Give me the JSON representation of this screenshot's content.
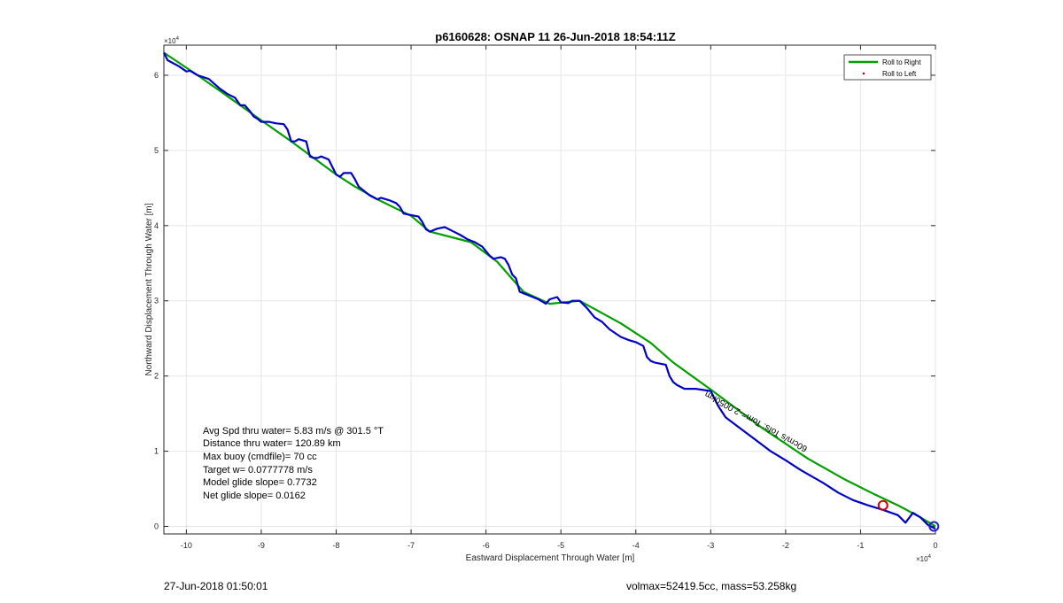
{
  "chart_data": {
    "type": "line",
    "title": "p6160628: OSNAP 11 26-Jun-2018 18:54:11Z",
    "xlabel": "Eastward Displacement Through Water [m]",
    "ylabel": "Northward Displacement Through Water [m]",
    "x_multiplier": "×10",
    "x_multiplier_exp": "4",
    "y_multiplier": "×10",
    "y_multiplier_exp": "4",
    "xlim": [
      -10.3,
      0
    ],
    "ylim": [
      -0.1,
      6.4
    ],
    "xticks": [
      -10,
      -9,
      -8,
      -7,
      -6,
      -5,
      -4,
      -3,
      -2,
      -1,
      0
    ],
    "yticks": [
      0,
      1,
      2,
      3,
      4,
      5,
      6
    ],
    "grid": true,
    "legend_position": "top-right",
    "legend": [
      {
        "label": "Roll to Right",
        "color": "#00a000",
        "style": "line"
      },
      {
        "label": "Roll to Left",
        "color": "#d00000",
        "style": "point"
      }
    ],
    "series": [
      {
        "name": "Roll to Right",
        "color": "#00a000",
        "x": [
          -10.3,
          -9.85,
          -9.35,
          -9.0,
          -8.6,
          -8.3,
          -8.0,
          -7.75,
          -7.45,
          -7.0,
          -6.75,
          -6.2,
          -5.85,
          -5.5,
          -5.15,
          -4.75,
          -4.2,
          -3.8,
          -3.5,
          -3.0,
          -2.3,
          -1.7,
          -1.2,
          -0.8,
          -0.5,
          -0.2,
          0.0
        ],
        "y": [
          6.3,
          6.0,
          5.65,
          5.4,
          5.12,
          4.9,
          4.68,
          4.52,
          4.35,
          4.13,
          3.92,
          3.78,
          3.52,
          3.12,
          2.96,
          3.0,
          2.7,
          2.44,
          2.18,
          1.82,
          1.3,
          0.9,
          0.62,
          0.42,
          0.28,
          0.12,
          0.0
        ]
      },
      {
        "name": "",
        "color": "#0000c8",
        "x": [
          -10.3,
          -10.25,
          -10.1,
          -10.0,
          -9.95,
          -9.85,
          -9.7,
          -9.55,
          -9.45,
          -9.35,
          -9.28,
          -9.22,
          -9.15,
          -9.1,
          -9.05,
          -9.0,
          -8.9,
          -8.8,
          -8.7,
          -8.65,
          -8.6,
          -8.55,
          -8.5,
          -8.4,
          -8.35,
          -8.3,
          -8.25,
          -8.2,
          -8.1,
          -8.0,
          -7.95,
          -7.9,
          -7.8,
          -7.75,
          -7.7,
          -7.65,
          -7.55,
          -7.45,
          -7.4,
          -7.3,
          -7.2,
          -7.15,
          -7.1,
          -7.0,
          -6.9,
          -6.85,
          -6.8,
          -6.75,
          -6.65,
          -6.55,
          -6.45,
          -6.35,
          -6.25,
          -6.15,
          -6.05,
          -5.95,
          -5.9,
          -5.85,
          -5.8,
          -5.75,
          -5.7,
          -5.65,
          -5.6,
          -5.55,
          -5.5,
          -5.4,
          -5.3,
          -5.2,
          -5.15,
          -5.05,
          -5.0,
          -4.9,
          -4.85,
          -4.75,
          -4.65,
          -4.55,
          -4.45,
          -4.35,
          -4.2,
          -4.1,
          -4.0,
          -3.9,
          -3.85,
          -3.8,
          -3.75,
          -3.6,
          -3.55,
          -3.5,
          -3.45,
          -3.35,
          -3.2,
          -3.0,
          -2.9,
          -2.8,
          -2.6,
          -2.4,
          -2.2,
          -2.0,
          -1.8,
          -1.5,
          -1.3,
          -1.1,
          -0.9,
          -0.7,
          -0.5,
          -0.4,
          -0.3,
          -0.2,
          -0.1,
          0.0
        ],
        "y": [
          6.3,
          6.2,
          6.12,
          6.05,
          6.06,
          6.0,
          5.95,
          5.82,
          5.75,
          5.7,
          5.6,
          5.6,
          5.52,
          5.45,
          5.42,
          5.38,
          5.38,
          5.36,
          5.35,
          5.28,
          5.12,
          5.12,
          5.15,
          5.12,
          4.92,
          4.9,
          4.9,
          4.92,
          4.88,
          4.68,
          4.65,
          4.7,
          4.7,
          4.62,
          4.52,
          4.48,
          4.4,
          4.35,
          4.37,
          4.34,
          4.3,
          4.25,
          4.16,
          4.14,
          4.12,
          4.05,
          3.95,
          3.92,
          3.96,
          3.98,
          3.93,
          3.88,
          3.82,
          3.78,
          3.72,
          3.6,
          3.56,
          3.57,
          3.58,
          3.56,
          3.48,
          3.35,
          3.3,
          3.12,
          3.1,
          3.06,
          3.02,
          2.96,
          3.02,
          3.05,
          2.98,
          2.97,
          3.0,
          3.0,
          2.9,
          2.78,
          2.72,
          2.62,
          2.52,
          2.48,
          2.45,
          2.4,
          2.25,
          2.2,
          2.18,
          2.15,
          2.0,
          1.92,
          1.88,
          1.83,
          1.83,
          1.8,
          1.6,
          1.45,
          1.3,
          1.15,
          1.0,
          0.88,
          0.75,
          0.58,
          0.45,
          0.35,
          0.28,
          0.22,
          0.15,
          0.05,
          0.18,
          0.12,
          0.02,
          -0.03
        ]
      }
    ],
    "markers": [
      {
        "x": -0.7,
        "y": 0.28,
        "color": "#d00000"
      },
      {
        "x": -0.02,
        "y": 0.0,
        "color": "#2020c0"
      }
    ],
    "annotation_rotated": "60cm/s Tofs: Tom=-2.0050km",
    "info_lines": [
      "Avg Spd thru water=  5.83 m/s @ 301.5 °T",
      "Distance thru water= 120.89 km",
      "Max buoy (cmdfile)= 70 cc",
      "Target w= 0.0777778 m/s",
      "Model glide slope= 0.7732",
      "Net glide slope= 0.0162"
    ]
  },
  "footer": {
    "left": "27-Jun-2018 01:50:01",
    "right": "volmax=52419.5cc, mass=53.258kg"
  }
}
